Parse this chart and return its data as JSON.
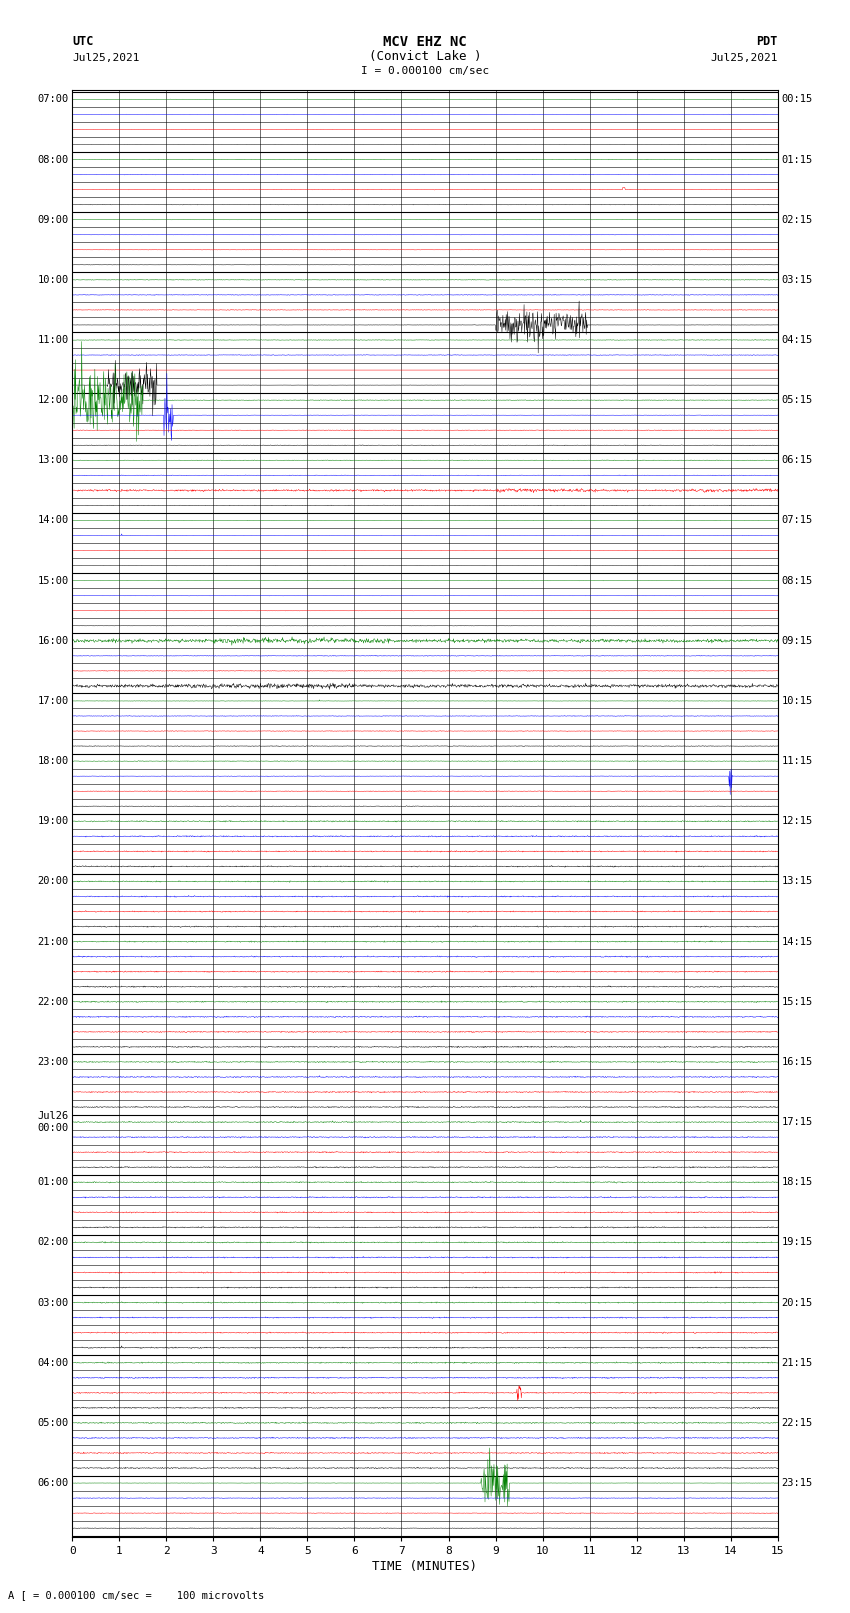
{
  "title_line1": "MCV EHZ NC",
  "title_line2": "(Convict Lake )",
  "title_line3": "I = 0.000100 cm/sec",
  "left_header_line1": "UTC",
  "left_header_line2": "Jul25,2021",
  "right_header_line1": "PDT",
  "right_header_line2": "Jul25,2021",
  "xlabel": "TIME (MINUTES)",
  "bottom_note": "A [ = 0.000100 cm/sec =    100 microvolts",
  "utc_hour_labels": [
    "07:00",
    "08:00",
    "09:00",
    "10:00",
    "11:00",
    "12:00",
    "13:00",
    "14:00",
    "15:00",
    "16:00",
    "17:00",
    "18:00",
    "19:00",
    "20:00",
    "21:00",
    "22:00",
    "23:00",
    "Jul26\n00:00",
    "01:00",
    "02:00",
    "03:00",
    "04:00",
    "05:00",
    "06:00"
  ],
  "pdt_hour_labels": [
    "00:15",
    "01:15",
    "02:15",
    "03:15",
    "04:15",
    "05:15",
    "06:15",
    "07:15",
    "08:15",
    "09:15",
    "10:15",
    "11:15",
    "12:15",
    "13:15",
    "14:15",
    "15:15",
    "16:15",
    "17:15",
    "18:15",
    "19:15",
    "20:15",
    "21:15",
    "22:15",
    "23:15"
  ],
  "num_hours": 24,
  "traces_per_hour": 4,
  "trace_duration_minutes": 15,
  "background_color": "#ffffff",
  "grid_color": "#aaaaaa",
  "colors_cycle": [
    "#008000",
    "#0000ff",
    "#ff0000",
    "#000000"
  ],
  "noise_seed": 42
}
